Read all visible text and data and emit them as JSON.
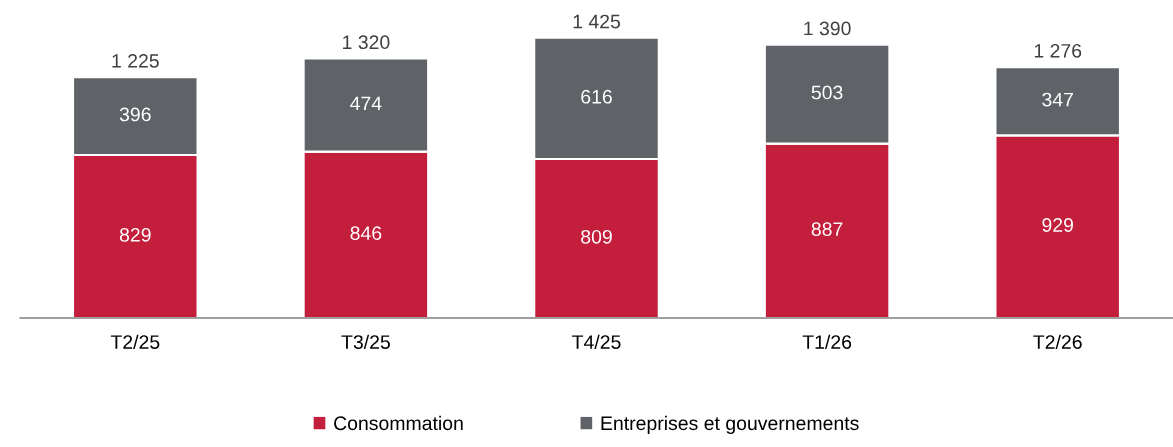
{
  "chart_data": {
    "type": "bar",
    "stacked": true,
    "categories": [
      "T2/25",
      "T3/25",
      "T4/25",
      "T1/26",
      "T2/26"
    ],
    "series": [
      {
        "name": "Consommation",
        "color": "#c41e3d",
        "values": [
          829,
          846,
          809,
          887,
          929
        ]
      },
      {
        "name": "Entreprises et gouvernements",
        "color": "#5f6367",
        "values": [
          396,
          474,
          616,
          503,
          347
        ]
      }
    ],
    "data_labels": true,
    "totals": [
      "1 225",
      "1 320",
      "1 425",
      "1 390",
      "1 276"
    ],
    "legend": "bottom",
    "grid": false
  }
}
